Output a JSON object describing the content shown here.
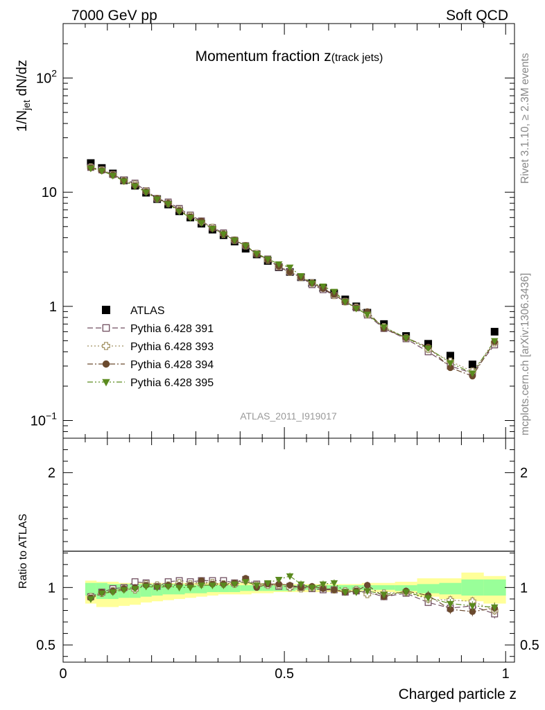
{
  "header": {
    "left": "7000 GeV pp",
    "right": "Soft QCD"
  },
  "side_labels": {
    "rivet": "Rivet 3.1.10, ≥ 2.3M events",
    "site": "mcplots.cern.ch [arXiv:1306.3436]"
  },
  "chart_data": [
    {
      "type": "scatter",
      "panel": "main",
      "title_main": "Momentum fraction z",
      "title_sub": "(track jets)",
      "ylabel_parts": [
        "1/N",
        "jet",
        " dN/dz"
      ],
      "watermark": "ATLAS_2011_I919017",
      "yscale": "log",
      "ylim": [
        0.07,
        300
      ],
      "xlim": [
        0,
        1.02
      ],
      "yticks": [
        {
          "v": 0.1,
          "base": "10",
          "exp": "−1"
        },
        {
          "v": 1,
          "base": "1",
          "exp": ""
        },
        {
          "v": 10,
          "base": "10",
          "exp": ""
        },
        {
          "v": 100,
          "base": "10",
          "exp": "2"
        }
      ],
      "legend_position": "center-left",
      "x": [
        0.0625,
        0.0875,
        0.1125,
        0.1375,
        0.1625,
        0.1875,
        0.2125,
        0.2375,
        0.2625,
        0.2875,
        0.3125,
        0.3375,
        0.3625,
        0.3875,
        0.4125,
        0.4375,
        0.4625,
        0.4875,
        0.5125,
        0.5375,
        0.5625,
        0.5875,
        0.6125,
        0.6375,
        0.6625,
        0.6875,
        0.725,
        0.775,
        0.825,
        0.875,
        0.925,
        0.975
      ],
      "series": [
        {
          "name": "ATLAS",
          "color": "#000000",
          "marker": "square",
          "line": "none",
          "values": [
            18.0,
            16.3,
            14.6,
            12.7,
            11.4,
            9.9,
            8.7,
            7.8,
            6.8,
            6.0,
            5.3,
            4.7,
            4.2,
            3.7,
            3.2,
            2.85,
            2.5,
            2.2,
            2.0,
            1.8,
            1.6,
            1.45,
            1.3,
            1.15,
            1.0,
            0.88,
            0.7,
            0.55,
            0.47,
            0.37,
            0.31,
            0.6
          ]
        },
        {
          "name": "Pythia 6.428 391",
          "color": "#6f4e5f",
          "marker": "open-square",
          "line": "dashed",
          "values": [
            16.5,
            15.7,
            14.3,
            12.8,
            12.0,
            10.3,
            8.8,
            8.2,
            7.2,
            6.3,
            5.6,
            4.9,
            4.4,
            3.8,
            3.4,
            2.9,
            2.6,
            2.2,
            2.0,
            1.8,
            1.55,
            1.4,
            1.25,
            1.1,
            0.97,
            0.84,
            0.64,
            0.52,
            0.4,
            0.3,
            0.26,
            0.46
          ]
        },
        {
          "name": "Pythia 6.428 393",
          "color": "#a09060",
          "marker": "open-cross",
          "line": "dotted",
          "values": [
            16.6,
            15.6,
            14.2,
            12.6,
            11.7,
            10.2,
            8.8,
            8.0,
            7.0,
            6.2,
            5.5,
            4.9,
            4.3,
            3.8,
            3.4,
            2.9,
            2.55,
            2.25,
            2.0,
            1.8,
            1.6,
            1.45,
            1.25,
            1.1,
            0.98,
            0.85,
            0.66,
            0.53,
            0.42,
            0.33,
            0.27,
            0.48
          ]
        },
        {
          "name": "Pythia 6.428 394",
          "color": "#6b4a2e",
          "marker": "circle",
          "line": "dashdot",
          "values": [
            16.4,
            15.5,
            14.2,
            12.6,
            11.4,
            10.1,
            8.8,
            8.0,
            6.9,
            6.1,
            5.6,
            4.8,
            4.3,
            3.8,
            3.4,
            2.85,
            2.55,
            2.25,
            2.0,
            1.8,
            1.6,
            1.43,
            1.27,
            1.1,
            0.97,
            0.9,
            0.64,
            0.53,
            0.44,
            0.29,
            0.245,
            0.49
          ]
        },
        {
          "name": "Pythia 6.428 395",
          "color": "#5a8a1e",
          "marker": "down-triangle",
          "line": "dashdotdot",
          "values": [
            16.2,
            15.4,
            14.0,
            12.5,
            11.3,
            10.0,
            8.7,
            7.9,
            6.8,
            6.0,
            5.4,
            4.8,
            4.3,
            3.8,
            3.4,
            2.9,
            2.6,
            2.35,
            2.2,
            1.85,
            1.6,
            1.5,
            1.35,
            1.1,
            0.96,
            0.85,
            0.66,
            0.53,
            0.43,
            0.32,
            0.26,
            0.5
          ]
        }
      ]
    },
    {
      "type": "scatter",
      "panel": "ratio",
      "ylabel": "Ratio to ATLAS",
      "xlabel": "Charged particle z",
      "ylim": [
        0.35,
        2.3
      ],
      "xlim": [
        0,
        1.02
      ],
      "yticks": [
        {
          "v": 0.5,
          "label": "0.5"
        },
        {
          "v": 1,
          "label": "1"
        },
        {
          "v": 2,
          "label": "2"
        }
      ],
      "xticks": [
        {
          "v": 0,
          "label": "0"
        },
        {
          "v": 0.5,
          "label": "0.5"
        },
        {
          "v": 1,
          "label": "1"
        }
      ],
      "bands": {
        "bins": [
          [
            0.05,
            0.075
          ],
          [
            0.075,
            0.1
          ],
          [
            0.1,
            0.125
          ],
          [
            0.125,
            0.15
          ],
          [
            0.15,
            0.175
          ],
          [
            0.175,
            0.2
          ],
          [
            0.2,
            0.225
          ],
          [
            0.225,
            0.25
          ],
          [
            0.25,
            0.275
          ],
          [
            0.275,
            0.3
          ],
          [
            0.3,
            0.325
          ],
          [
            0.325,
            0.35
          ],
          [
            0.35,
            0.375
          ],
          [
            0.375,
            0.4
          ],
          [
            0.4,
            0.425
          ],
          [
            0.425,
            0.45
          ],
          [
            0.45,
            0.475
          ],
          [
            0.475,
            0.5
          ],
          [
            0.5,
            0.525
          ],
          [
            0.525,
            0.55
          ],
          [
            0.55,
            0.575
          ],
          [
            0.575,
            0.6
          ],
          [
            0.6,
            0.625
          ],
          [
            0.625,
            0.65
          ],
          [
            0.65,
            0.675
          ],
          [
            0.675,
            0.7
          ],
          [
            0.7,
            0.75
          ],
          [
            0.75,
            0.8
          ],
          [
            0.8,
            0.85
          ],
          [
            0.85,
            0.9
          ],
          [
            0.9,
            0.95
          ],
          [
            0.95,
            1.0
          ]
        ],
        "yellow_lo": [
          0.86,
          0.83,
          0.83,
          0.84,
          0.85,
          0.87,
          0.88,
          0.89,
          0.9,
          0.91,
          0.92,
          0.93,
          0.94,
          0.94,
          0.94,
          0.95,
          0.95,
          0.96,
          0.96,
          0.96,
          0.96,
          0.96,
          0.96,
          0.96,
          0.97,
          0.97,
          0.96,
          0.95,
          0.92,
          0.9,
          0.88,
          0.86
        ],
        "yellow_hi": [
          1.06,
          1.05,
          1.05,
          1.04,
          1.04,
          1.04,
          1.04,
          1.04,
          1.04,
          1.04,
          1.04,
          1.04,
          1.04,
          1.04,
          1.04,
          1.04,
          1.03,
          1.03,
          1.03,
          1.03,
          1.03,
          1.03,
          1.03,
          1.03,
          1.03,
          1.04,
          1.04,
          1.05,
          1.08,
          1.08,
          1.13,
          1.1
        ],
        "green_lo": [
          0.93,
          0.9,
          0.9,
          0.91,
          0.91,
          0.92,
          0.93,
          0.94,
          0.94,
          0.95,
          0.95,
          0.96,
          0.96,
          0.96,
          0.97,
          0.97,
          0.97,
          0.97,
          0.97,
          0.98,
          0.98,
          0.98,
          0.98,
          0.98,
          0.98,
          0.98,
          0.98,
          0.97,
          0.95,
          0.94,
          0.93,
          0.93
        ],
        "green_hi": [
          1.04,
          1.04,
          1.03,
          1.03,
          1.03,
          1.03,
          1.03,
          1.03,
          1.03,
          1.02,
          1.02,
          1.02,
          1.02,
          1.02,
          1.02,
          1.02,
          1.02,
          1.02,
          1.02,
          1.02,
          1.02,
          1.02,
          1.02,
          1.02,
          1.02,
          1.02,
          1.02,
          1.02,
          1.03,
          1.04,
          1.07,
          1.07
        ]
      },
      "series": [
        {
          "name": "Pythia 6.428 391",
          "color": "#6f4e5f",
          "marker": "open-square",
          "line": "dashed",
          "values": [
            0.92,
            0.96,
            0.99,
            1.0,
            1.05,
            1.04,
            1.01,
            1.05,
            1.06,
            1.05,
            1.06,
            1.06,
            1.06,
            1.04,
            1.07,
            1.03,
            1.03,
            1.01,
            1.01,
            1.0,
            0.99,
            0.98,
            0.98,
            0.96,
            0.97,
            0.96,
            0.92,
            0.95,
            0.87,
            0.82,
            0.84,
            0.77
          ],
          "errors": [
            0.02,
            0.02,
            0.02,
            0.02,
            0.02,
            0.02,
            0.02,
            0.02,
            0.02,
            0.02,
            0.02,
            0.02,
            0.02,
            0.02,
            0.02,
            0.02,
            0.02,
            0.02,
            0.03,
            0.03,
            0.03,
            0.03,
            0.03,
            0.03,
            0.03,
            0.03,
            0.03,
            0.03,
            0.03,
            0.04,
            0.04,
            0.04
          ]
        },
        {
          "name": "Pythia 6.428 393",
          "color": "#a09060",
          "marker": "open-cross",
          "line": "dotted",
          "values": [
            0.92,
            0.95,
            0.97,
            0.99,
            0.98,
            1.03,
            1.02,
            1.02,
            1.04,
            1.03,
            1.03,
            1.04,
            1.03,
            1.03,
            1.06,
            1.02,
            1.02,
            1.02,
            1.0,
            0.99,
            1.0,
            1.0,
            0.98,
            0.97,
            0.98,
            0.94,
            0.95,
            0.96,
            0.9,
            0.89,
            0.88,
            0.8
          ],
          "errors": [
            0.02,
            0.02,
            0.02,
            0.02,
            0.02,
            0.02,
            0.02,
            0.02,
            0.02,
            0.02,
            0.02,
            0.02,
            0.02,
            0.02,
            0.02,
            0.02,
            0.02,
            0.02,
            0.03,
            0.03,
            0.03,
            0.03,
            0.03,
            0.03,
            0.03,
            0.03,
            0.03,
            0.03,
            0.04,
            0.04,
            0.04,
            0.04
          ]
        },
        {
          "name": "Pythia 6.428 394",
          "color": "#6b4a2e",
          "marker": "circle",
          "line": "dashdot",
          "values": [
            0.91,
            0.96,
            0.97,
            0.99,
            1.0,
            1.02,
            1.01,
            1.02,
            1.02,
            1.02,
            1.06,
            1.03,
            1.03,
            1.04,
            1.08,
            1.0,
            1.03,
            1.03,
            1.02,
            1.0,
            1.01,
            0.99,
            0.98,
            0.96,
            0.97,
            1.02,
            0.92,
            0.97,
            0.93,
            0.81,
            0.79,
            0.82
          ],
          "errors": [
            0.02,
            0.02,
            0.02,
            0.02,
            0.02,
            0.02,
            0.02,
            0.02,
            0.02,
            0.02,
            0.02,
            0.02,
            0.02,
            0.02,
            0.02,
            0.02,
            0.02,
            0.02,
            0.03,
            0.03,
            0.03,
            0.03,
            0.03,
            0.03,
            0.03,
            0.03,
            0.03,
            0.03,
            0.04,
            0.04,
            0.04,
            0.04
          ]
        },
        {
          "name": "Pythia 6.428 395",
          "color": "#5a8a1e",
          "marker": "down-triangle",
          "line": "dashdotdot",
          "values": [
            0.9,
            0.95,
            0.96,
            0.98,
            0.99,
            1.01,
            1.0,
            1.01,
            1.0,
            1.0,
            1.02,
            1.02,
            1.02,
            1.03,
            1.05,
            1.02,
            1.04,
            1.07,
            1.1,
            1.03,
            1.0,
            1.03,
            1.04,
            0.96,
            0.96,
            0.97,
            0.94,
            0.96,
            0.91,
            0.86,
            0.84,
            0.83
          ],
          "errors": [
            0.02,
            0.02,
            0.02,
            0.02,
            0.02,
            0.02,
            0.02,
            0.02,
            0.02,
            0.02,
            0.02,
            0.02,
            0.02,
            0.02,
            0.02,
            0.02,
            0.02,
            0.02,
            0.03,
            0.03,
            0.03,
            0.03,
            0.03,
            0.03,
            0.03,
            0.03,
            0.03,
            0.03,
            0.04,
            0.04,
            0.04,
            0.04
          ]
        }
      ]
    }
  ]
}
